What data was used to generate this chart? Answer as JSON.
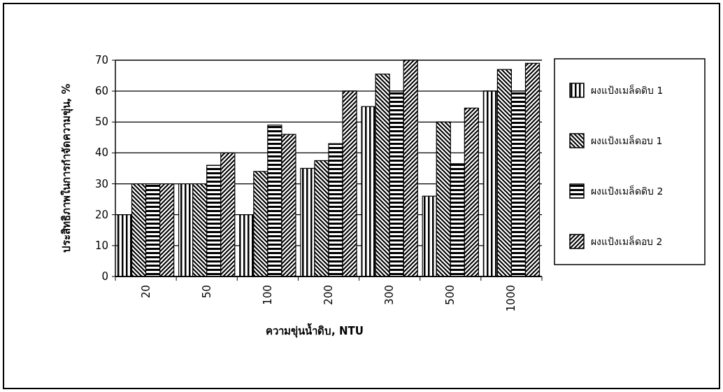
{
  "chart_data": {
    "type": "bar",
    "xlabel": "ความขุ่นน้ำดิบ, NTU",
    "ylabel": "ประสิทธิภาพในการกำจัดความขุ่น, %",
    "categories": [
      "20",
      "50",
      "100",
      "200",
      "300",
      "500",
      "1000"
    ],
    "series": [
      {
        "name": "ผงแป้งเมล็ดดิบ 1",
        "color": "#000000",
        "values": [
          20,
          30,
          20,
          35,
          55,
          26,
          60
        ]
      },
      {
        "name": "ผงแป้งเมล็ดอบ 1",
        "color": "#000000",
        "values": [
          30,
          30,
          34,
          37.5,
          65.5,
          50,
          67
        ]
      },
      {
        "name": "ผงแป้งเมล็ดดิบ 2",
        "color": "#000000",
        "values": [
          30,
          36,
          49,
          43,
          60,
          36.5,
          60
        ]
      },
      {
        "name": "ผงแป้งเมล็ดอบ 2",
        "color": "#000000",
        "values": [
          30,
          40,
          46,
          60,
          70,
          54.5,
          69
        ]
      }
    ],
    "ylim": [
      0,
      70
    ],
    "yticks": [
      0,
      10,
      20,
      30,
      40,
      50,
      60,
      70
    ],
    "grid": "y",
    "legend": "right"
  }
}
